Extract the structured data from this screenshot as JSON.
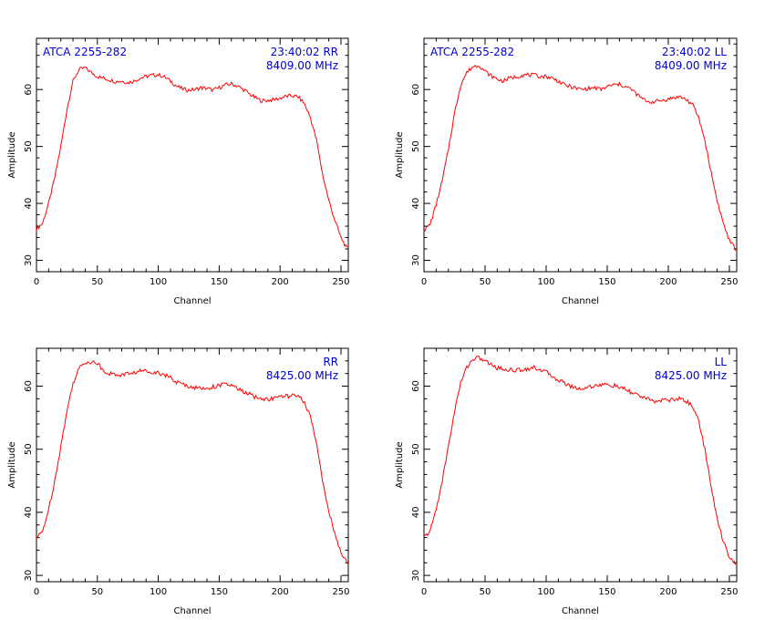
{
  "chart_data": [
    {
      "type": "line",
      "xlabel": "Channel",
      "ylabel": "Amplitude",
      "xlim": [
        0,
        256
      ],
      "ylim": [
        28,
        69
      ],
      "xticks": [
        0,
        50,
        100,
        150,
        200,
        250
      ],
      "yticks": [
        30,
        40,
        50,
        60
      ],
      "annotations": {
        "source": "ATCA 2255-282",
        "time_pol": "23:40:02  RR",
        "freq": "8409.00 MHz"
      },
      "series": [
        {
          "color": "#ff0000",
          "x": [
            0,
            5,
            10,
            15,
            20,
            25,
            30,
            35,
            40,
            45,
            50,
            55,
            60,
            65,
            70,
            75,
            80,
            85,
            90,
            95,
            100,
            105,
            110,
            115,
            120,
            125,
            130,
            135,
            140,
            145,
            150,
            155,
            160,
            165,
            170,
            175,
            180,
            185,
            190,
            195,
            200,
            205,
            210,
            215,
            220,
            225,
            230,
            235,
            240,
            245,
            250,
            255
          ],
          "values": [
            35.5,
            36.5,
            40,
            44.5,
            50,
            56.5,
            61.5,
            63.5,
            63.8,
            63,
            62.3,
            62,
            61.7,
            61.4,
            61.5,
            61.2,
            61.5,
            62,
            62.3,
            62.5,
            62.6,
            62.2,
            61.5,
            60.6,
            60.1,
            59.9,
            60,
            60.3,
            60.2,
            59.9,
            60.3,
            60.8,
            61,
            60.6,
            60,
            59.2,
            58.5,
            58,
            58.1,
            58.2,
            58.5,
            58.8,
            58.9,
            58.7,
            57.5,
            55,
            51,
            45,
            40.5,
            37,
            34,
            32
          ]
        }
      ]
    },
    {
      "type": "line",
      "xlabel": "Channel",
      "ylabel": "Amplitude",
      "xlim": [
        0,
        256
      ],
      "ylim": [
        28,
        69
      ],
      "xticks": [
        0,
        50,
        100,
        150,
        200,
        250
      ],
      "yticks": [
        30,
        40,
        50,
        60
      ],
      "annotations": {
        "source": "ATCA 2255-282",
        "time_pol": "23:40:02  LL",
        "freq": "8409.00 MHz"
      },
      "series": [
        {
          "color": "#ff0000",
          "x": [
            0,
            5,
            10,
            15,
            20,
            25,
            30,
            35,
            40,
            45,
            50,
            55,
            60,
            65,
            70,
            75,
            80,
            85,
            90,
            95,
            100,
            105,
            110,
            115,
            120,
            125,
            130,
            135,
            140,
            145,
            150,
            155,
            160,
            165,
            170,
            175,
            180,
            185,
            190,
            195,
            200,
            205,
            210,
            215,
            220,
            225,
            230,
            235,
            240,
            245,
            250,
            255
          ],
          "values": [
            35.3,
            36.3,
            39.8,
            44,
            49.5,
            55.8,
            60.8,
            63,
            64,
            64.3,
            63.2,
            62.4,
            61.8,
            61.5,
            62,
            62.2,
            62.5,
            62.6,
            62.5,
            62.3,
            62.3,
            62,
            61.5,
            60.8,
            60.5,
            60.2,
            60,
            60.2,
            60.3,
            60,
            60.5,
            60.8,
            60.9,
            60.5,
            60,
            59,
            58.2,
            57.8,
            57.9,
            58.1,
            58.3,
            58.6,
            58.7,
            58.2,
            57.3,
            55,
            51,
            45.5,
            40.5,
            36.5,
            33.5,
            32
          ]
        }
      ]
    },
    {
      "type": "line",
      "xlabel": "Channel",
      "ylabel": "Amplitude",
      "xlim": [
        0,
        256
      ],
      "ylim": [
        29,
        66
      ],
      "xticks": [
        0,
        50,
        100,
        150,
        200,
        250
      ],
      "yticks": [
        30,
        40,
        50,
        60
      ],
      "annotations": {
        "source": "",
        "time_pol": "RR",
        "freq": "8425.00 MHz"
      },
      "series": [
        {
          "color": "#ff0000",
          "x": [
            0,
            5,
            10,
            15,
            20,
            25,
            30,
            35,
            40,
            45,
            50,
            55,
            60,
            65,
            70,
            75,
            80,
            85,
            90,
            95,
            100,
            105,
            110,
            115,
            120,
            125,
            130,
            135,
            140,
            145,
            150,
            155,
            160,
            165,
            170,
            175,
            180,
            185,
            190,
            195,
            200,
            205,
            210,
            215,
            220,
            225,
            230,
            235,
            240,
            245,
            250,
            255
          ],
          "values": [
            35.8,
            37,
            40.5,
            45,
            50.5,
            56,
            60.5,
            62.8,
            63.8,
            63.9,
            63.6,
            62.5,
            62,
            61.8,
            61.8,
            62,
            62.1,
            62.4,
            62.4,
            62.3,
            62.1,
            61.9,
            61.3,
            60.6,
            60.3,
            60,
            59.8,
            59.6,
            59.7,
            59.9,
            60.1,
            60.3,
            60.1,
            59.6,
            59.1,
            58.7,
            58.2,
            58,
            57.9,
            58.1,
            58.3,
            58.4,
            58.5,
            58.3,
            57.5,
            55,
            50.8,
            45,
            40.2,
            36.5,
            33.5,
            32
          ]
        }
      ]
    },
    {
      "type": "line",
      "xlabel": "Channel",
      "ylabel": "Amplitude",
      "xlim": [
        0,
        256
      ],
      "ylim": [
        29,
        66
      ],
      "xticks": [
        0,
        50,
        100,
        150,
        200,
        250
      ],
      "yticks": [
        30,
        40,
        50,
        60
      ],
      "annotations": {
        "source": "",
        "time_pol": "LL",
        "freq": "8425.00 MHz"
      },
      "series": [
        {
          "color": "#ff0000",
          "x": [
            0,
            5,
            10,
            15,
            20,
            25,
            30,
            35,
            40,
            45,
            50,
            55,
            60,
            65,
            70,
            75,
            80,
            85,
            90,
            95,
            100,
            105,
            110,
            115,
            120,
            125,
            130,
            135,
            140,
            145,
            150,
            155,
            160,
            165,
            170,
            175,
            180,
            185,
            190,
            195,
            200,
            205,
            210,
            215,
            220,
            225,
            230,
            235,
            240,
            245,
            250,
            255
          ],
          "values": [
            36,
            37,
            40.5,
            45,
            50.5,
            56,
            60.5,
            63,
            64.3,
            64.5,
            64,
            63.4,
            62.9,
            62.7,
            62.6,
            62.5,
            62.6,
            62.8,
            62.9,
            62.7,
            62.2,
            61.6,
            61,
            60.5,
            60,
            59.7,
            59.6,
            59.9,
            60.1,
            60.2,
            60.2,
            60.1,
            59.8,
            59.4,
            59,
            58.6,
            58.2,
            57.7,
            57.6,
            57.8,
            57.8,
            57.9,
            58,
            57.6,
            56.8,
            54.5,
            50,
            44,
            39,
            35.5,
            33,
            31.8
          ]
        }
      ]
    }
  ]
}
